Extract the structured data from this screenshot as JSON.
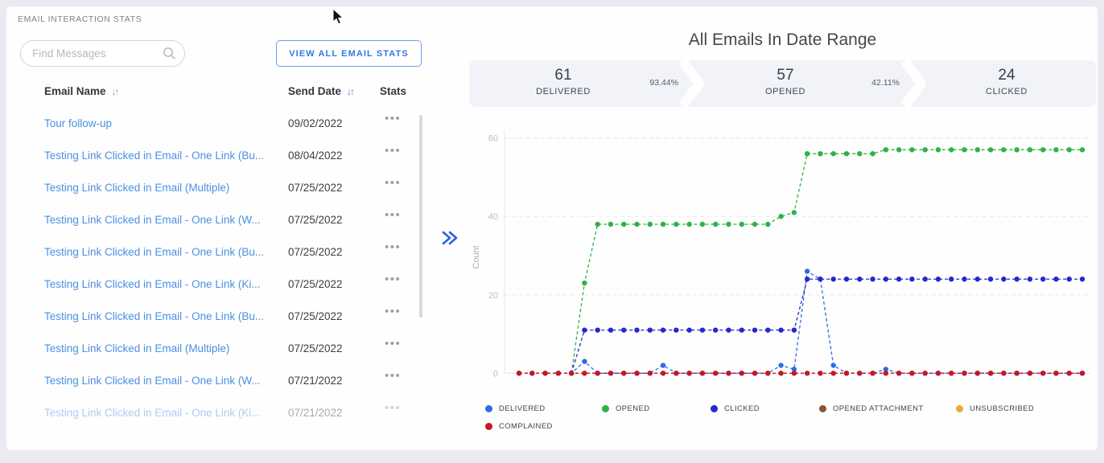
{
  "left_panel": {
    "title": "EMAIL INTERACTION STATS",
    "search": {
      "placeholder": "Find Messages"
    },
    "view_all_button": "VIEW ALL EMAIL STATS",
    "table": {
      "columns": [
        "Email Name",
        "Send Date",
        "Stats"
      ],
      "sort_icon": "↓↑",
      "row_menu_icon": "•••",
      "rows": [
        {
          "name": "Tour follow-up",
          "date": "09/02/2022",
          "faded": false
        },
        {
          "name": "Testing Link Clicked in Email - One Link (Bu...",
          "date": "08/04/2022",
          "faded": false
        },
        {
          "name": "Testing Link Clicked in Email (Multiple)",
          "date": "07/25/2022",
          "faded": false
        },
        {
          "name": "Testing Link Clicked in Email - One Link (W...",
          "date": "07/25/2022",
          "faded": false
        },
        {
          "name": "Testing Link Clicked in Email - One Link (Bu...",
          "date": "07/25/2022",
          "faded": false
        },
        {
          "name": "Testing Link Clicked in Email - One Link (Ki...",
          "date": "07/25/2022",
          "faded": false
        },
        {
          "name": "Testing Link Clicked in Email - One Link (Bu...",
          "date": "07/25/2022",
          "faded": false
        },
        {
          "name": "Testing Link Clicked in Email (Multiple)",
          "date": "07/25/2022",
          "faded": false
        },
        {
          "name": "Testing Link Clicked in Email - One Link (W...",
          "date": "07/21/2022",
          "faded": false
        },
        {
          "name": "Testing Link Clicked in Email - One Link (Ki...",
          "date": "07/21/2022",
          "faded": true
        }
      ]
    }
  },
  "right_panel": {
    "title": "All Emails In Date Range",
    "funnel": [
      {
        "value": "61",
        "label": "DELIVERED",
        "pct_to_next": "93.44%"
      },
      {
        "value": "57",
        "label": "OPENED",
        "pct_to_next": "42.11%"
      },
      {
        "value": "24",
        "label": "CLICKED",
        "pct_to_next": ""
      }
    ]
  },
  "chart_data": {
    "type": "line",
    "title": "All Emails In Date Range",
    "xlabel": "",
    "ylabel": "Count",
    "yticks": [
      0,
      20,
      40,
      60
    ],
    "ylim": [
      0,
      62
    ],
    "x_point_count": 44,
    "x_tick_labels": [],
    "grid": "horizontal-dashed",
    "legend_position": "bottom",
    "point_style": "dot-with-dashed-line",
    "series": [
      {
        "name": "DELIVERED",
        "color": "#2e6be5",
        "values": [
          0,
          0,
          0,
          0,
          0,
          3,
          0,
          0,
          0,
          0,
          0,
          2,
          0,
          0,
          0,
          0,
          0,
          0,
          0,
          0,
          2,
          1,
          26,
          24,
          2,
          0,
          0,
          0,
          1,
          0,
          0,
          0,
          0,
          0,
          0,
          0,
          0,
          0,
          0,
          0,
          0,
          0,
          0,
          0
        ]
      },
      {
        "name": "OPENED",
        "color": "#2eb347",
        "values": [
          null,
          null,
          null,
          null,
          0,
          23,
          38,
          38,
          38,
          38,
          38,
          38,
          38,
          38,
          38,
          38,
          38,
          38,
          38,
          38,
          40,
          41,
          56,
          56,
          56,
          56,
          56,
          56,
          57,
          57,
          57,
          57,
          57,
          57,
          57,
          57,
          57,
          57,
          57,
          57,
          57,
          57,
          57,
          57
        ]
      },
      {
        "name": "CLICKED",
        "color": "#2627d0",
        "values": [
          null,
          null,
          null,
          null,
          0,
          11,
          11,
          11,
          11,
          11,
          11,
          11,
          11,
          11,
          11,
          11,
          11,
          11,
          11,
          11,
          11,
          11,
          24,
          24,
          24,
          24,
          24,
          24,
          24,
          24,
          24,
          24,
          24,
          24,
          24,
          24,
          24,
          24,
          24,
          24,
          24,
          24,
          24,
          24
        ]
      },
      {
        "name": "OPENED ATTACHMENT",
        "color": "#8a5430",
        "values": []
      },
      {
        "name": "UNSUBSCRIBED",
        "color": "#f2a53a",
        "values": []
      },
      {
        "name": "COMPLAINED",
        "color": "#c51724",
        "values": [
          0,
          0,
          0,
          0,
          0,
          0,
          0,
          0,
          0,
          0,
          0,
          0,
          0,
          0,
          0,
          0,
          0,
          0,
          0,
          0,
          0,
          0,
          0,
          0,
          0,
          0,
          0,
          0,
          0,
          0,
          0,
          0,
          0,
          0,
          0,
          0,
          0,
          0,
          0,
          0,
          0,
          0,
          0,
          0
        ]
      }
    ],
    "legend": [
      "DELIVERED",
      "OPENED",
      "CLICKED",
      "OPENED ATTACHMENT",
      "UNSUBSCRIBED",
      "COMPLAINED"
    ]
  }
}
